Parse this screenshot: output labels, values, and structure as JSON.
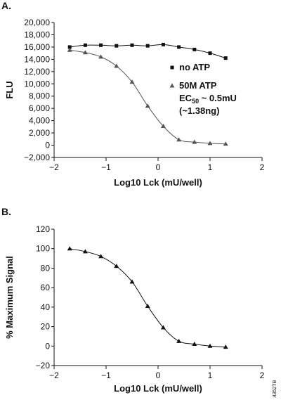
{
  "figure_id": "4352TB",
  "chart_data": [
    {
      "type": "scatter",
      "panel_label": "A.",
      "y_label": "FLU",
      "x_label": "Log10 Lck (mU/well)",
      "curve": "smooth",
      "x": [
        -1.7,
        -1.4,
        -1.1,
        -0.8,
        -0.5,
        -0.2,
        0.1,
        0.4,
        0.7,
        1.0,
        1.3
      ],
      "series": [
        {
          "name": "no ATP",
          "marker": "square",
          "color": "#111111",
          "values": [
            16000,
            16300,
            16300,
            16200,
            16300,
            16200,
            16400,
            16000,
            15600,
            15000,
            14200
          ]
        },
        {
          "name": "50M ATP",
          "marker": "triangle",
          "color": "#555555",
          "values": [
            15500,
            15100,
            14400,
            12900,
            10300,
            6400,
            3100,
            900,
            500,
            300,
            200
          ]
        }
      ],
      "annotation": {
        "ec_prefix": "EC",
        "ec_sub": "50",
        "ec_suffix": " ~ 0.5mU",
        "mass": "(~1.38ng)"
      },
      "xlim": [
        -2,
        2
      ],
      "xticks": [
        {
          "value": -2,
          "label": "−2"
        },
        {
          "value": -1,
          "label": "−1"
        },
        0,
        1,
        2
      ],
      "ylim": [
        -2000,
        20000
      ],
      "yticks": [
        {
          "value": -2000,
          "label": "−2,000"
        },
        0,
        {
          "value": 2000,
          "label": "2,000"
        },
        {
          "value": 4000,
          "label": "4,000"
        },
        {
          "value": 6000,
          "label": "6,000"
        },
        {
          "value": 8000,
          "label": "8,000"
        },
        {
          "value": 10000,
          "label": "10,000"
        },
        {
          "value": 12000,
          "label": "12,000"
        },
        {
          "value": 14000,
          "label": "14,000"
        },
        {
          "value": 16000,
          "label": "16,000"
        },
        {
          "value": 18000,
          "label": "18,000"
        },
        {
          "value": 20000,
          "label": "20,000"
        }
      ]
    },
    {
      "type": "scatter",
      "panel_label": "B.",
      "y_label": "% Maximum Signal",
      "x_label": "Log10 Lck (mU/well)",
      "curve": "smooth",
      "x": [
        -1.7,
        -1.4,
        -1.1,
        -0.8,
        -0.5,
        -0.2,
        0.1,
        0.4,
        0.7,
        1.0,
        1.3
      ],
      "series": [
        {
          "marker": "triangle",
          "color": "#111111",
          "values": [
            100,
            97,
            92,
            82,
            66,
            41,
            19,
            5,
            2,
            0,
            -1
          ]
        }
      ],
      "xlim": [
        -2,
        2
      ],
      "xticks": [
        {
          "value": -2,
          "label": "−2"
        },
        {
          "value": -1,
          "label": "−1"
        },
        0,
        1,
        2
      ],
      "ylim": [
        -20,
        120
      ],
      "yticks": [
        {
          "value": -20,
          "label": "−20"
        },
        0,
        20,
        40,
        60,
        80,
        100,
        120
      ]
    }
  ]
}
